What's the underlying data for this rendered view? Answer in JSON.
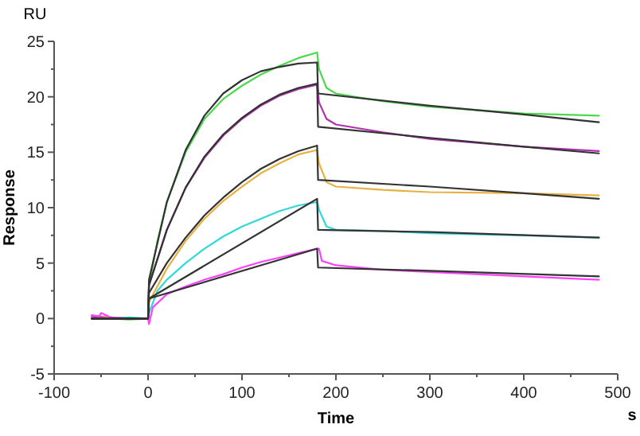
{
  "chart_data": {
    "type": "line",
    "xlabel": "Time",
    "ylabel": "Response",
    "annotations": [
      "RU",
      "s"
    ],
    "xlim": [
      -100,
      500
    ],
    "ylim": [
      -5,
      25
    ],
    "xticks": [
      -100,
      {
        "value": -50,
        "label": null
      },
      0,
      {
        "value": 50,
        "label": null
      },
      100,
      {
        "value": 150,
        "label": null
      },
      200,
      {
        "value": 250,
        "label": null
      },
      300,
      {
        "value": 350,
        "label": null
      },
      400,
      {
        "value": 450,
        "label": null
      },
      500
    ],
    "yticks": [
      -5,
      {
        "value": -2.5,
        "label": null
      },
      0,
      {
        "value": 2.5,
        "label": null
      },
      5,
      {
        "value": 7.5,
        "label": null
      },
      10,
      {
        "value": 12.5,
        "label": null
      },
      15,
      {
        "value": 17.5,
        "label": null
      },
      20,
      {
        "value": 22.5,
        "label": null
      },
      25
    ],
    "grid": false,
    "line_style": "solid",
    "series": [
      {
        "color": "#4cd94c",
        "x": [
          -60,
          -40,
          -20,
          0,
          1,
          10,
          20,
          40,
          60,
          80,
          100,
          120,
          140,
          160,
          180,
          182,
          190,
          200,
          220,
          250,
          300,
          350,
          400,
          480
        ],
        "values": [
          0,
          0,
          -0.1,
          0,
          3,
          7,
          10.5,
          15,
          18,
          19.8,
          21,
          22,
          22.8,
          23.5,
          24,
          22.5,
          20.8,
          20.3,
          20,
          19.6,
          19.1,
          18.8,
          18.5,
          18.3
        ]
      },
      {
        "color": "#b030b0",
        "x": [
          -60,
          -40,
          -20,
          0,
          1,
          20,
          40,
          60,
          80,
          100,
          120,
          140,
          160,
          180,
          182,
          190,
          200,
          250,
          300,
          400,
          480
        ],
        "values": [
          0.2,
          0.1,
          0,
          0,
          3,
          8,
          11.8,
          14.5,
          16.5,
          18,
          19.2,
          20.1,
          20.7,
          21.1,
          19.5,
          18,
          17.5,
          16.8,
          16.2,
          15.5,
          15.1
        ]
      },
      {
        "color": "#e8b040",
        "x": [
          -60,
          -40,
          -20,
          0,
          1,
          20,
          40,
          60,
          80,
          100,
          120,
          140,
          160,
          180,
          182,
          190,
          200,
          250,
          300,
          400,
          480
        ],
        "values": [
          0,
          0.1,
          0,
          0,
          1.5,
          4.5,
          7,
          9,
          10.6,
          11.9,
          13.1,
          14,
          14.8,
          15.2,
          14,
          12.3,
          11.9,
          11.6,
          11.4,
          11.3,
          11.1
        ]
      },
      {
        "color": "#30d8d8",
        "x": [
          -60,
          -40,
          -20,
          0,
          1,
          10,
          20,
          40,
          60,
          80,
          100,
          120,
          140,
          160,
          180,
          182,
          190,
          200,
          250,
          300,
          400,
          480
        ],
        "values": [
          0,
          0,
          0.1,
          0,
          0.5,
          2.5,
          3.5,
          5,
          6.3,
          7.4,
          8.3,
          9,
          9.7,
          10.2,
          10.5,
          9.8,
          8.3,
          8,
          7.9,
          7.7,
          7.5,
          7.3
        ]
      },
      {
        "color": "#ff40ff",
        "x": [
          -60,
          -52,
          -50,
          -40,
          -20,
          0,
          1,
          5,
          20,
          40,
          60,
          80,
          100,
          120,
          140,
          160,
          180,
          182,
          185,
          200,
          250,
          300,
          400,
          480
        ],
        "values": [
          0.3,
          0.2,
          0.5,
          0.1,
          0,
          0,
          -0.5,
          1,
          2.2,
          2.9,
          3.5,
          4,
          4.6,
          5.1,
          5.5,
          5.9,
          6.3,
          6.3,
          5.2,
          4.8,
          4.4,
          4.2,
          3.8,
          3.5
        ]
      },
      {
        "color": "#333333",
        "x": [
          -60,
          0,
          1,
          20,
          40,
          60,
          80,
          100,
          120,
          140,
          160,
          180,
          181,
          300,
          400,
          480
        ],
        "values": [
          0,
          0,
          3.5,
          10.5,
          15.2,
          18.3,
          20.3,
          21.5,
          22.3,
          22.7,
          23,
          23.1,
          20.3,
          19.2,
          18.4,
          17.7
        ]
      },
      {
        "color": "#333333",
        "x": [
          -60,
          0,
          1,
          20,
          40,
          60,
          80,
          100,
          120,
          140,
          160,
          180,
          181,
          300,
          400,
          480
        ],
        "values": [
          0,
          0,
          3,
          8,
          11.8,
          14.6,
          16.6,
          18.1,
          19.3,
          20.2,
          20.8,
          21.2,
          17.3,
          16.3,
          15.5,
          14.9
        ]
      },
      {
        "color": "#333333",
        "x": [
          -60,
          0,
          1,
          20,
          40,
          60,
          80,
          100,
          120,
          140,
          160,
          180,
          181,
          300,
          400,
          480
        ],
        "values": [
          0,
          0,
          2.3,
          5,
          7.3,
          9.3,
          10.9,
          12.3,
          13.5,
          14.4,
          15.1,
          15.6,
          12.5,
          11.9,
          11.3,
          10.8
        ]
      },
      {
        "color": "#333333",
        "x": [
          -60,
          0,
          1,
          180,
          181,
          300,
          480
        ],
        "values": [
          0,
          0,
          1.8,
          10.8,
          8,
          7.8,
          7.3
        ]
      },
      {
        "color": "#333333",
        "x": [
          -60,
          0,
          1,
          180,
          181,
          300,
          480
        ],
        "values": [
          0,
          0,
          1.8,
          6.3,
          4.6,
          4.3,
          3.8
        ]
      }
    ]
  }
}
